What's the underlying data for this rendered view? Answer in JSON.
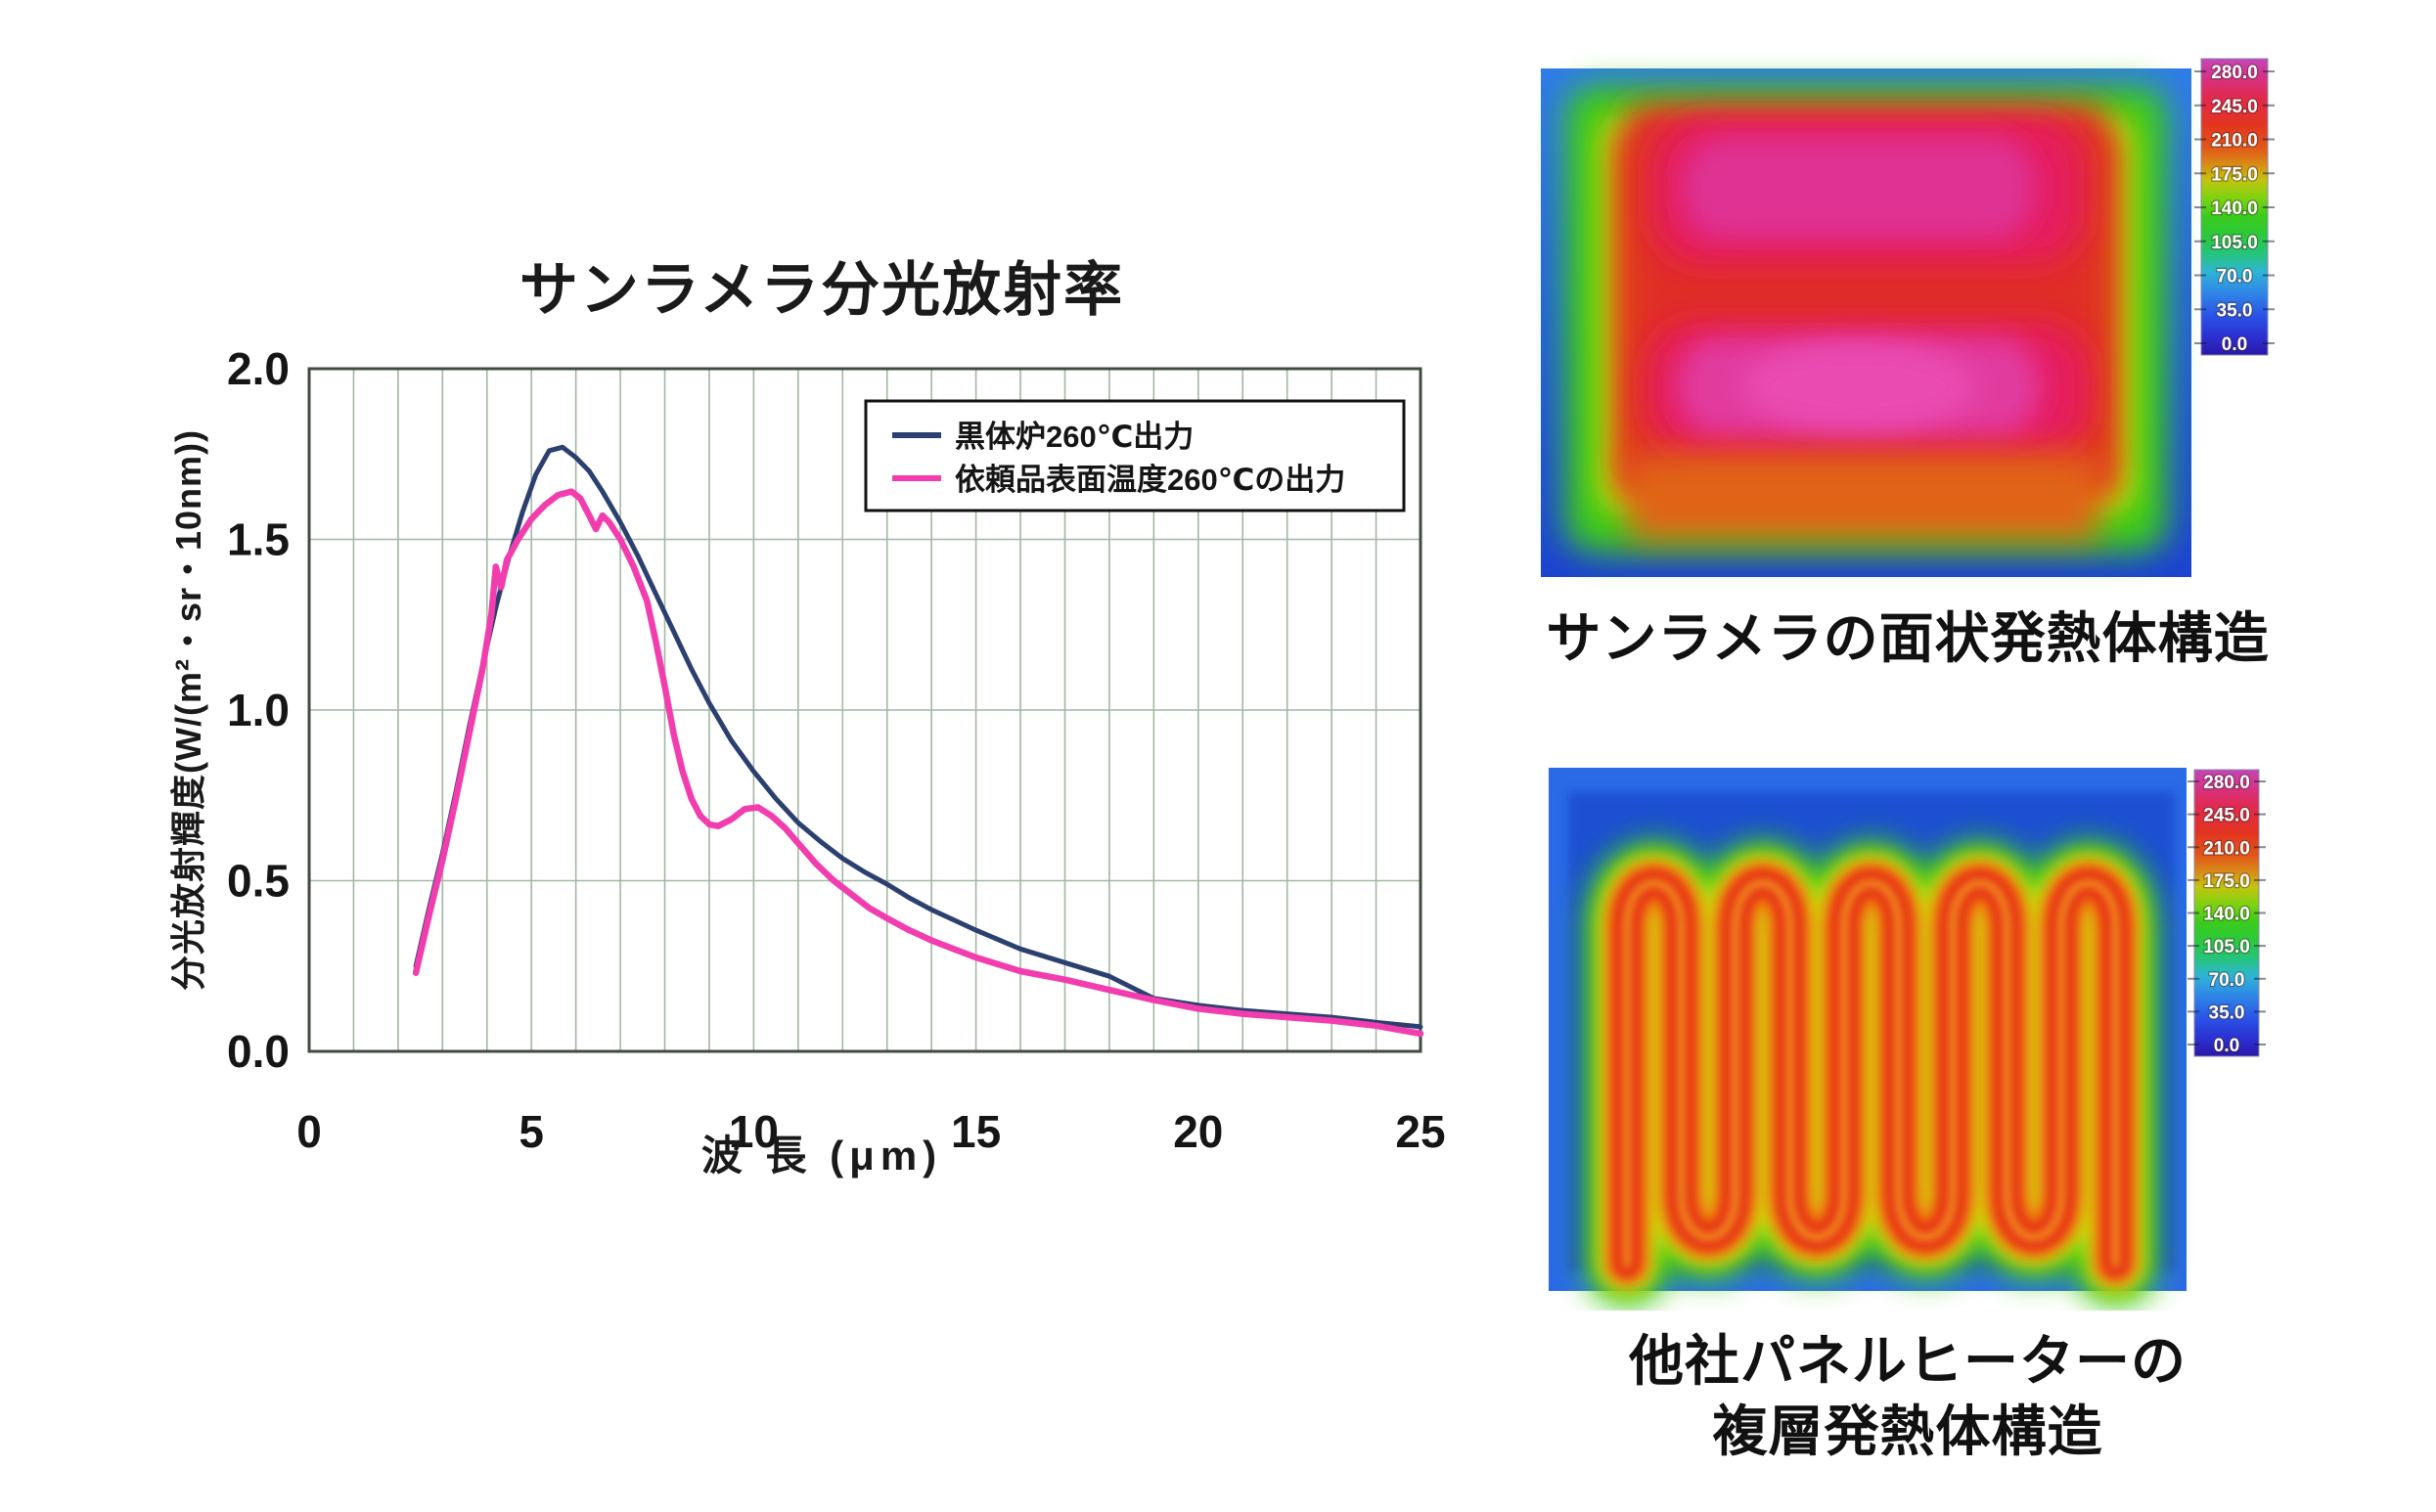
{
  "chart": {
    "title": "サンラメラ分光放射率",
    "x_axis_label": "波 長 (μm)",
    "y_axis_label": "分光放射輝度(W/(m²・sr・10nm))"
  },
  "chart_data": {
    "type": "line",
    "title": "サンラメラ分光放射率",
    "xlabel": "波 長 (μm)",
    "ylabel": "分光放射輝度(W/(m²・sr・10nm))",
    "xlim": [
      0,
      25
    ],
    "ylim": [
      0,
      2.0
    ],
    "x_ticks": [
      0,
      5,
      10,
      15,
      20,
      25
    ],
    "y_tick_labels": [
      "0.0",
      "0.5",
      "1.0",
      "1.5",
      "2.0"
    ],
    "x_minor_grid_step": 1,
    "y_grid_step": 0.5,
    "grid": true,
    "grid_color": "#a2b7a2",
    "plot_border_color": "#3f4b3f",
    "legend_position": "top-right",
    "series": [
      {
        "name": "黒体炉260℃出力",
        "color": "#2c4070",
        "points": [
          [
            2.4,
            0.25
          ],
          [
            2.7,
            0.42
          ],
          [
            3.0,
            0.58
          ],
          [
            3.3,
            0.76
          ],
          [
            3.6,
            0.95
          ],
          [
            3.9,
            1.13
          ],
          [
            4.2,
            1.3
          ],
          [
            4.5,
            1.45
          ],
          [
            4.8,
            1.58
          ],
          [
            5.1,
            1.69
          ],
          [
            5.4,
            1.76
          ],
          [
            5.7,
            1.77
          ],
          [
            6.0,
            1.74
          ],
          [
            6.3,
            1.7
          ],
          [
            6.6,
            1.64
          ],
          [
            7.0,
            1.55
          ],
          [
            7.4,
            1.45
          ],
          [
            7.8,
            1.34
          ],
          [
            8.2,
            1.23
          ],
          [
            8.6,
            1.12
          ],
          [
            9.0,
            1.02
          ],
          [
            9.5,
            0.91
          ],
          [
            10.0,
            0.82
          ],
          [
            10.5,
            0.74
          ],
          [
            11.0,
            0.67
          ],
          [
            11.5,
            0.615
          ],
          [
            12.0,
            0.565
          ],
          [
            12.5,
            0.525
          ],
          [
            13.0,
            0.49
          ],
          [
            13.5,
            0.45
          ],
          [
            14.0,
            0.415
          ],
          [
            14.5,
            0.385
          ],
          [
            15.0,
            0.355
          ],
          [
            16.0,
            0.3
          ],
          [
            17.0,
            0.26
          ],
          [
            18.0,
            0.22
          ],
          [
            19.0,
            0.155
          ],
          [
            20.0,
            0.135
          ],
          [
            21.0,
            0.12
          ],
          [
            22.0,
            0.11
          ],
          [
            23.0,
            0.1
          ],
          [
            24.0,
            0.085
          ],
          [
            25.0,
            0.072
          ]
        ]
      },
      {
        "name": "依頼品表面温度260℃の出力",
        "color": "#f23dae",
        "points": [
          [
            2.4,
            0.23
          ],
          [
            2.7,
            0.4
          ],
          [
            3.0,
            0.56
          ],
          [
            3.3,
            0.74
          ],
          [
            3.6,
            0.93
          ],
          [
            3.9,
            1.12
          ],
          [
            4.1,
            1.28
          ],
          [
            4.2,
            1.42
          ],
          [
            4.32,
            1.36
          ],
          [
            4.45,
            1.44
          ],
          [
            4.7,
            1.5
          ],
          [
            5.0,
            1.56
          ],
          [
            5.3,
            1.6
          ],
          [
            5.6,
            1.63
          ],
          [
            5.9,
            1.64
          ],
          [
            6.1,
            1.62
          ],
          [
            6.3,
            1.57
          ],
          [
            6.45,
            1.53
          ],
          [
            6.6,
            1.57
          ],
          [
            6.75,
            1.55
          ],
          [
            7.0,
            1.5
          ],
          [
            7.3,
            1.42
          ],
          [
            7.6,
            1.32
          ],
          [
            7.8,
            1.2
          ],
          [
            8.0,
            1.07
          ],
          [
            8.2,
            0.93
          ],
          [
            8.4,
            0.82
          ],
          [
            8.6,
            0.74
          ],
          [
            8.8,
            0.69
          ],
          [
            9.0,
            0.665
          ],
          [
            9.2,
            0.66
          ],
          [
            9.5,
            0.68
          ],
          [
            9.8,
            0.71
          ],
          [
            10.1,
            0.715
          ],
          [
            10.4,
            0.69
          ],
          [
            10.7,
            0.655
          ],
          [
            11.0,
            0.61
          ],
          [
            11.4,
            0.55
          ],
          [
            11.8,
            0.5
          ],
          [
            12.2,
            0.46
          ],
          [
            12.6,
            0.42
          ],
          [
            13.0,
            0.39
          ],
          [
            13.5,
            0.355
          ],
          [
            14.0,
            0.325
          ],
          [
            14.5,
            0.3
          ],
          [
            15.0,
            0.275
          ],
          [
            16.0,
            0.235
          ],
          [
            17.0,
            0.21
          ],
          [
            18.0,
            0.18
          ],
          [
            19.0,
            0.15
          ],
          [
            20.0,
            0.125
          ],
          [
            21.0,
            0.11
          ],
          [
            22.0,
            0.1
          ],
          [
            23.0,
            0.09
          ],
          [
            24.0,
            0.075
          ],
          [
            25.0,
            0.052
          ]
        ]
      }
    ]
  },
  "thermal_top": {
    "caption": "サンラメラの面状発熱体構造",
    "colorbar_labels": [
      "280.0",
      "245.0",
      "210.0",
      "175.0",
      "140.0",
      "105.0",
      "70.0",
      "35.0",
      "0.0"
    ]
  },
  "thermal_bottom": {
    "caption_line1": "他社パネルヒーターの",
    "caption_line2": "複層発熱体構造",
    "colorbar_labels": [
      "280.0",
      "245.0",
      "210.0",
      "175.0",
      "140.0",
      "105.0",
      "70.0",
      "35.0",
      "0.0"
    ]
  },
  "colors": {
    "blackbody_line": "#2c4070",
    "sample_line": "#f23dae",
    "grid": "#a2b7a2",
    "plot_border": "#3f4b3f"
  }
}
